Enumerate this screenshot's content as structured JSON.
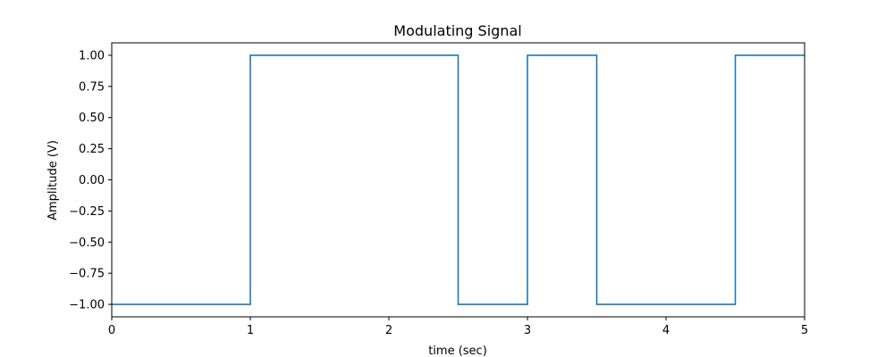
{
  "chart_data": {
    "type": "line",
    "title": "Modulating Signal",
    "xlabel": "time (sec)",
    "ylabel": "Amplitude (V)",
    "xlim": [
      0,
      5
    ],
    "ylim": [
      -1.1,
      1.1
    ],
    "grid": false,
    "step": true,
    "color": "#1f77b4",
    "x_ticks": [
      0,
      1,
      2,
      3,
      4,
      5
    ],
    "x_tick_labels": [
      "0",
      "1",
      "2",
      "3",
      "4",
      "5"
    ],
    "y_ticks": [
      -1.0,
      -0.75,
      -0.5,
      -0.25,
      0.0,
      0.25,
      0.5,
      0.75,
      1.0
    ],
    "y_tick_labels": [
      "−1.00",
      "−0.75",
      "−0.50",
      "−0.25",
      "0.00",
      "0.25",
      "0.50",
      "0.75",
      "1.00"
    ],
    "series": [
      {
        "x": [
          0,
          1,
          1,
          2.5,
          2.5,
          3,
          3,
          3.5,
          3.5,
          4.5,
          4.5,
          5
        ],
        "y": [
          -1,
          -1,
          1,
          1,
          -1,
          -1,
          1,
          1,
          -1,
          -1,
          1,
          1
        ]
      }
    ]
  }
}
